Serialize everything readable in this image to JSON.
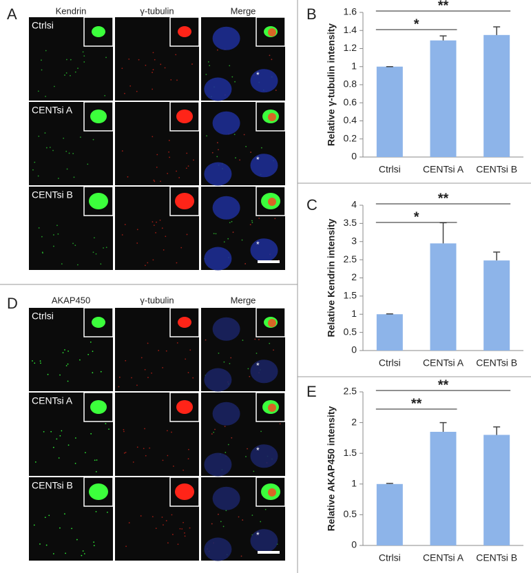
{
  "figure": {
    "panel_a": {
      "label": "A",
      "columns": [
        "Kendrin",
        "γ-tubulin",
        "Merge"
      ],
      "rows": [
        "Ctrlsi",
        "CENTsi A",
        "CENTsi B"
      ],
      "cell_markers": [
        "*",
        "*",
        "*"
      ]
    },
    "panel_d": {
      "label": "D",
      "columns": [
        "AKAP450",
        "γ-tubulin",
        "Merge"
      ],
      "rows": [
        "Ctrlsi",
        "CENTsi A",
        "CENTsi B"
      ],
      "cell_markers": [
        "*",
        "*",
        "*"
      ]
    }
  },
  "chart_data": [
    {
      "type": "bar",
      "panel": "B",
      "y_label": "Relative γ-tubulin intensity",
      "categories": [
        "Ctrlsi",
        "CENTsi A",
        "CENTsi B"
      ],
      "values": [
        1,
        1.29,
        1.35
      ],
      "errors": [
        0,
        0.05,
        0.09
      ],
      "color": "#8db4e9",
      "ylim": [
        0,
        1.6
      ],
      "yticks": [
        0,
        0.2,
        0.4,
        0.6,
        0.8,
        1,
        1.2,
        1.4,
        1.6
      ],
      "annotations": [
        "*",
        "**"
      ]
    },
    {
      "type": "bar",
      "panel": "C",
      "y_label": "Relative Kendrin intensity",
      "categories": [
        "Ctrlsi",
        "CENTsi A",
        "CENTsi B"
      ],
      "values": [
        1,
        2.95,
        2.48
      ],
      "errors": [
        0.01,
        0.57,
        0.23
      ],
      "color": "#8db4e9",
      "ylim": [
        0,
        4
      ],
      "yticks": [
        0,
        0.5,
        1,
        1.5,
        2,
        2.5,
        3,
        3.5,
        4
      ],
      "annotations": [
        "*",
        "**"
      ]
    },
    {
      "type": "bar",
      "panel": "E",
      "y_label": "Relative AKAP450 intensity",
      "categories": [
        "Ctrlsi",
        "CENTsi A",
        "CENTsi B"
      ],
      "values": [
        1,
        1.85,
        1.8
      ],
      "errors": [
        0.01,
        0.15,
        0.13
      ],
      "color": "#8db4e9",
      "ylim": [
        0,
        2.5
      ],
      "yticks": [
        0,
        0.5,
        1,
        1.5,
        2,
        2.5
      ],
      "annotations": [
        "**",
        "**"
      ]
    }
  ]
}
